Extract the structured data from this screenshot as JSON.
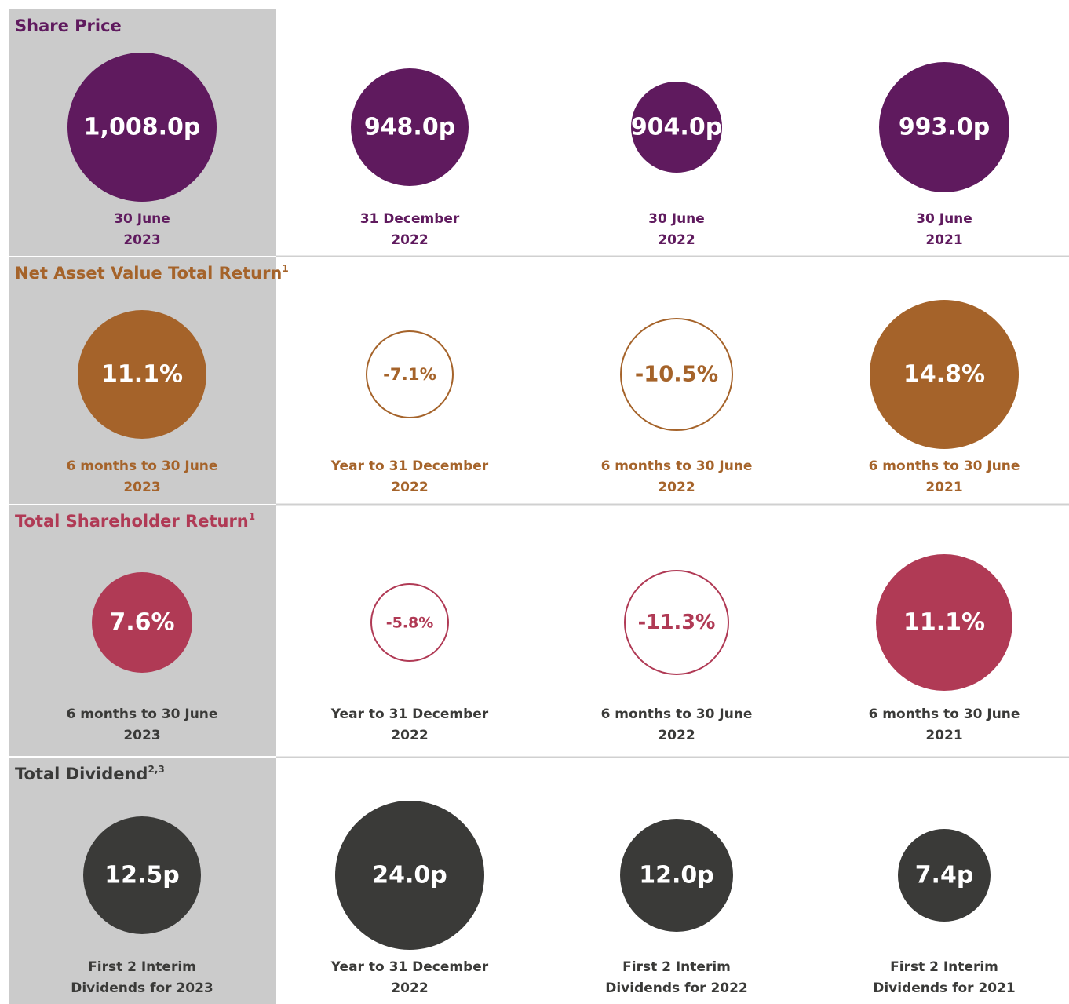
{
  "sections": [
    {
      "title": "Share Price",
      "color": "#5f1a5e",
      "label_color": "#5f1a5e",
      "items": [
        {
          "value": "1,008.0p",
          "period": [
            "30 June",
            "2023"
          ]
        },
        {
          "value": "948.0p",
          "period": [
            "31 December",
            "2022"
          ]
        },
        {
          "value": "904.0p",
          "period": [
            "30 June",
            "2022"
          ]
        },
        {
          "value": "993.0p",
          "period": [
            "30 June",
            "2021"
          ]
        }
      ]
    },
    {
      "title": "Net Asset Value Total Return",
      "note": "1",
      "color": "#a5632a",
      "label_color": "#a5632a",
      "items": [
        {
          "value": "11.1%",
          "period": [
            "6 months to 30 June",
            "2023"
          ]
        },
        {
          "value": "-7.1%",
          "period": [
            "Year to 31 December",
            "2022"
          ]
        },
        {
          "value": "-10.5%",
          "period": [
            "6 months to 30 June",
            "2022"
          ]
        },
        {
          "value": "14.8%",
          "period": [
            "6 months to 30 June",
            "2021"
          ]
        }
      ]
    },
    {
      "title": "Total Shareholder Return",
      "note": "1",
      "color": "#b03a55",
      "label_color": "#3a3a38",
      "items": [
        {
          "value": "7.6%",
          "period": [
            "6 months to 30 June",
            "2023"
          ]
        },
        {
          "value": "-5.8%",
          "period": [
            "Year to 31 December",
            "2022"
          ]
        },
        {
          "value": "-11.3%",
          "period": [
            "6 months to 30 June",
            "2022"
          ]
        },
        {
          "value": "11.1%",
          "period": [
            "6 months to 30 June",
            "2021"
          ]
        }
      ]
    },
    {
      "title": "Total Dividend",
      "note": "2,3",
      "color": "#3a3a38",
      "label_color": "#3a3a38",
      "items": [
        {
          "value": "12.5p",
          "period": [
            "First 2 Interim",
            "Dividends for 2023"
          ]
        },
        {
          "value": "24.0p",
          "period": [
            "Year to 31 December",
            "2022"
          ]
        },
        {
          "value": "12.0p",
          "period": [
            "First 2 Interim",
            "Dividends for 2022"
          ]
        },
        {
          "value": "7.4p",
          "period": [
            "First 2 Interim",
            "Dividends for 2021"
          ]
        }
      ]
    }
  ]
}
